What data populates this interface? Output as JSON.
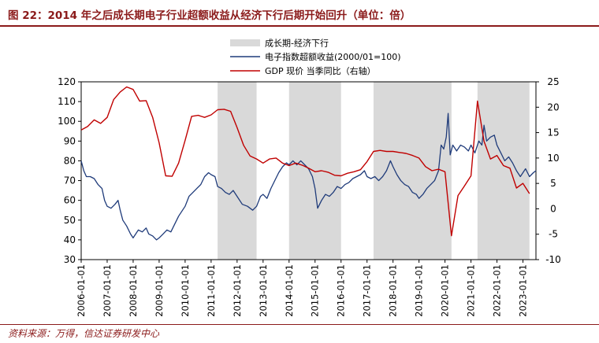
{
  "figure": {
    "title": "图 22：2014 年之后成长期电子行业超额收益从经济下行后期开始回升（单位：倍）",
    "source": "资料来源：万得，信达证券研发中心"
  },
  "colors": {
    "accent": "#8b1a1a",
    "shade": "#d9d9d9",
    "electronics": "#1f3b7a",
    "gdp": "#c00000"
  },
  "chart_data": {
    "type": "line",
    "legend": {
      "position": "top-center",
      "shade_label": "成长期-经济下行",
      "electronics_label": "电子指数超额收益(2000/01=100)",
      "gdp_label": "GDP 现价 当季同比（右轴）"
    },
    "x_ticks": [
      "2006-01-01",
      "2007-01-01",
      "2008-01-01",
      "2009-01-01",
      "2010-01-01",
      "2011-01-01",
      "2012-01-01",
      "2013-01-01",
      "2014-01-01",
      "2015-01-01",
      "2016-01-01",
      "2017-01-01",
      "2018-01-01",
      "2019-01-01",
      "2020-01-01",
      "2021-01-01",
      "2022-01-01",
      "2023-01-01"
    ],
    "x_range": [
      2006.0,
      2023.5
    ],
    "y_left": {
      "min": 30,
      "max": 120,
      "ticks": [
        "30",
        "40",
        "50",
        "60",
        "70",
        "80",
        "90",
        "100",
        "110",
        "120"
      ]
    },
    "y_right": {
      "min": -10,
      "max": 25,
      "ticks": [
        "-10",
        "-5",
        "0",
        "5",
        "10",
        "15",
        "20",
        "25"
      ]
    },
    "shaded_periods": [
      [
        2011.25,
        2012.75
      ],
      [
        2014.0,
        2016.0
      ],
      [
        2017.25,
        2020.25
      ],
      [
        2021.25,
        2023.25
      ]
    ],
    "series": [
      {
        "name": "电子指数超额收益(2000/01=100)",
        "axis": "left",
        "points": [
          [
            2006.0,
            80
          ],
          [
            2006.1,
            75
          ],
          [
            2006.2,
            72
          ],
          [
            2006.35,
            72
          ],
          [
            2006.5,
            71
          ],
          [
            2006.65,
            68
          ],
          [
            2006.8,
            66
          ],
          [
            2006.9,
            60
          ],
          [
            2007.0,
            57
          ],
          [
            2007.15,
            56
          ],
          [
            2007.3,
            58
          ],
          [
            2007.42,
            60
          ],
          [
            2007.5,
            55
          ],
          [
            2007.6,
            50
          ],
          [
            2007.75,
            47
          ],
          [
            2007.9,
            43
          ],
          [
            2008.0,
            41
          ],
          [
            2008.1,
            43
          ],
          [
            2008.2,
            45
          ],
          [
            2008.35,
            44
          ],
          [
            2008.5,
            46
          ],
          [
            2008.6,
            43
          ],
          [
            2008.75,
            42
          ],
          [
            2008.9,
            40
          ],
          [
            2009.0,
            41
          ],
          [
            2009.15,
            43
          ],
          [
            2009.3,
            45
          ],
          [
            2009.45,
            44
          ],
          [
            2009.6,
            48
          ],
          [
            2009.75,
            52
          ],
          [
            2009.9,
            55
          ],
          [
            2010.0,
            57
          ],
          [
            2010.15,
            62
          ],
          [
            2010.3,
            64
          ],
          [
            2010.45,
            66
          ],
          [
            2010.6,
            68
          ],
          [
            2010.75,
            72
          ],
          [
            2010.9,
            74
          ],
          [
            2011.0,
            73
          ],
          [
            2011.15,
            72
          ],
          [
            2011.25,
            67
          ],
          [
            2011.4,
            66
          ],
          [
            2011.55,
            64
          ],
          [
            2011.7,
            63
          ],
          [
            2011.85,
            65
          ],
          [
            2012.0,
            62
          ],
          [
            2012.2,
            58
          ],
          [
            2012.4,
            57
          ],
          [
            2012.6,
            55
          ],
          [
            2012.75,
            57
          ],
          [
            2012.9,
            62
          ],
          [
            2013.0,
            63
          ],
          [
            2013.15,
            61
          ],
          [
            2013.3,
            66
          ],
          [
            2013.45,
            70
          ],
          [
            2013.6,
            74
          ],
          [
            2013.75,
            77
          ],
          [
            2013.9,
            79
          ],
          [
            2014.0,
            78
          ],
          [
            2014.15,
            80
          ],
          [
            2014.3,
            78
          ],
          [
            2014.45,
            80
          ],
          [
            2014.6,
            78
          ],
          [
            2014.75,
            76
          ],
          [
            2014.9,
            72
          ],
          [
            2015.0,
            66
          ],
          [
            2015.1,
            56
          ],
          [
            2015.25,
            60
          ],
          [
            2015.4,
            63
          ],
          [
            2015.55,
            62
          ],
          [
            2015.7,
            64
          ],
          [
            2015.85,
            67
          ],
          [
            2016.0,
            66
          ],
          [
            2016.15,
            68
          ],
          [
            2016.3,
            69
          ],
          [
            2016.45,
            71
          ],
          [
            2016.6,
            72
          ],
          [
            2016.75,
            73
          ],
          [
            2016.9,
            75
          ],
          [
            2017.0,
            72
          ],
          [
            2017.15,
            71
          ],
          [
            2017.3,
            72
          ],
          [
            2017.45,
            70
          ],
          [
            2017.6,
            72
          ],
          [
            2017.75,
            75
          ],
          [
            2017.9,
            80
          ],
          [
            2018.0,
            77
          ],
          [
            2018.15,
            73
          ],
          [
            2018.3,
            70
          ],
          [
            2018.45,
            68
          ],
          [
            2018.6,
            67
          ],
          [
            2018.75,
            64
          ],
          [
            2018.9,
            63
          ],
          [
            2019.0,
            61
          ],
          [
            2019.15,
            63
          ],
          [
            2019.3,
            66
          ],
          [
            2019.45,
            68
          ],
          [
            2019.6,
            70
          ],
          [
            2019.75,
            75
          ],
          [
            2019.85,
            88
          ],
          [
            2019.95,
            86
          ],
          [
            2020.05,
            92
          ],
          [
            2020.12,
            104
          ],
          [
            2020.2,
            83
          ],
          [
            2020.3,
            88
          ],
          [
            2020.45,
            85
          ],
          [
            2020.6,
            88
          ],
          [
            2020.75,
            87
          ],
          [
            2020.9,
            85
          ],
          [
            2021.0,
            88
          ],
          [
            2021.15,
            84
          ],
          [
            2021.3,
            90
          ],
          [
            2021.42,
            88
          ],
          [
            2021.5,
            98
          ],
          [
            2021.6,
            90
          ],
          [
            2021.75,
            92
          ],
          [
            2021.9,
            93
          ],
          [
            2022.0,
            88
          ],
          [
            2022.15,
            84
          ],
          [
            2022.3,
            80
          ],
          [
            2022.45,
            82
          ],
          [
            2022.6,
            79
          ],
          [
            2022.75,
            75
          ],
          [
            2022.9,
            72
          ],
          [
            2023.0,
            74
          ],
          [
            2023.1,
            76
          ],
          [
            2023.25,
            72
          ],
          [
            2023.4,
            74
          ],
          [
            2023.5,
            75
          ]
        ]
      },
      {
        "name": "GDP 现价 当季同比（右轴）",
        "axis": "right",
        "points": [
          [
            2006.0,
            15.5
          ],
          [
            2006.25,
            16.2
          ],
          [
            2006.5,
            17.5
          ],
          [
            2006.75,
            16.8
          ],
          [
            2007.0,
            18.0
          ],
          [
            2007.25,
            21.5
          ],
          [
            2007.5,
            23.0
          ],
          [
            2007.75,
            24.0
          ],
          [
            2008.0,
            23.5
          ],
          [
            2008.25,
            21.2
          ],
          [
            2008.5,
            21.3
          ],
          [
            2008.75,
            18.0
          ],
          [
            2009.0,
            13.0
          ],
          [
            2009.25,
            6.5
          ],
          [
            2009.5,
            6.4
          ],
          [
            2009.75,
            9.0
          ],
          [
            2010.0,
            13.5
          ],
          [
            2010.25,
            18.2
          ],
          [
            2010.5,
            18.4
          ],
          [
            2010.75,
            18.0
          ],
          [
            2011.0,
            18.5
          ],
          [
            2011.25,
            19.5
          ],
          [
            2011.5,
            19.6
          ],
          [
            2011.75,
            19.2
          ],
          [
            2012.0,
            16.0
          ],
          [
            2012.25,
            12.5
          ],
          [
            2012.5,
            10.4
          ],
          [
            2012.75,
            9.8
          ],
          [
            2013.0,
            9.0
          ],
          [
            2013.25,
            9.8
          ],
          [
            2013.5,
            10.0
          ],
          [
            2013.75,
            9.0
          ],
          [
            2014.0,
            8.5
          ],
          [
            2014.25,
            9.0
          ],
          [
            2014.5,
            8.6
          ],
          [
            2014.75,
            8.0
          ],
          [
            2015.0,
            7.3
          ],
          [
            2015.25,
            7.5
          ],
          [
            2015.5,
            7.2
          ],
          [
            2015.75,
            6.6
          ],
          [
            2016.0,
            6.5
          ],
          [
            2016.25,
            7.0
          ],
          [
            2016.5,
            7.3
          ],
          [
            2016.75,
            7.7
          ],
          [
            2017.0,
            9.3
          ],
          [
            2017.25,
            11.3
          ],
          [
            2017.5,
            11.5
          ],
          [
            2017.75,
            11.3
          ],
          [
            2018.0,
            11.3
          ],
          [
            2018.25,
            11.1
          ],
          [
            2018.5,
            10.9
          ],
          [
            2018.75,
            10.5
          ],
          [
            2019.0,
            10.0
          ],
          [
            2019.25,
            8.3
          ],
          [
            2019.5,
            7.5
          ],
          [
            2019.75,
            7.8
          ],
          [
            2020.0,
            7.3
          ],
          [
            2020.25,
            -5.3
          ],
          [
            2020.5,
            2.6
          ],
          [
            2020.75,
            4.5
          ],
          [
            2021.0,
            6.5
          ],
          [
            2021.25,
            21.2
          ],
          [
            2021.5,
            13.3
          ],
          [
            2021.75,
            9.8
          ],
          [
            2022.0,
            10.5
          ],
          [
            2022.25,
            8.5
          ],
          [
            2022.5,
            8.0
          ],
          [
            2022.75,
            4.1
          ],
          [
            2023.0,
            5.0
          ],
          [
            2023.25,
            3.0
          ]
        ]
      }
    ]
  }
}
